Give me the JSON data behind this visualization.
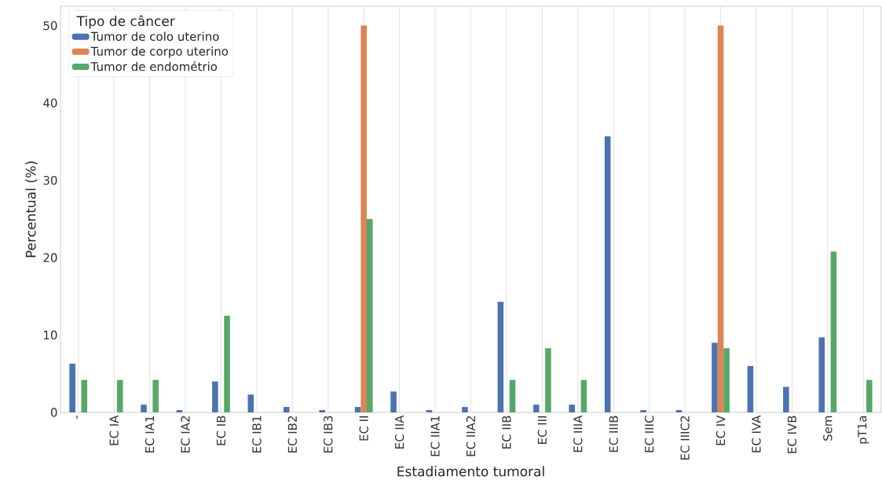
{
  "chart_data": {
    "type": "bar",
    "xlabel": "Estadiamento tumoral",
    "ylabel": "Percentual (%)",
    "legend_title": "Tipo de câncer",
    "categories": [
      "-",
      "EC IA",
      "EC IA1",
      "EC IA2",
      "EC IB",
      "EC IB1",
      "EC IB2",
      "EC IB3",
      "EC II",
      "EC IIA",
      "EC IIA1",
      "EC IIA2",
      "EC IIB",
      "EC III",
      "EC IIIA",
      "EC IIIB",
      "EC IIIC",
      "EC IIIC2",
      "EC IV",
      "EC IVA",
      "EC IVB",
      "Sem",
      "pT1a"
    ],
    "series": [
      {
        "name": "Tumor de colo uterino",
        "color": "#4c72b0",
        "values": [
          6.3,
          0,
          1.0,
          0.3,
          4.0,
          2.3,
          0.7,
          0.3,
          0.7,
          2.7,
          0.3,
          0.7,
          14.3,
          1.0,
          1.0,
          35.7,
          0.3,
          0.3,
          9.0,
          6.0,
          3.3,
          9.7,
          0
        ]
      },
      {
        "name": "Tumor de corpo uterino",
        "color": "#dd8452",
        "values": [
          0,
          0,
          0,
          0,
          0,
          0,
          0,
          0,
          50,
          0,
          0,
          0,
          0,
          0,
          0,
          0,
          0,
          0,
          50,
          0,
          0,
          0,
          0
        ]
      },
      {
        "name": "Tumor de endométrio",
        "color": "#55a868",
        "values": [
          4.2,
          4.2,
          4.2,
          0,
          12.5,
          0,
          0,
          0,
          25,
          0,
          0,
          0,
          4.2,
          8.3,
          4.2,
          0,
          0,
          0,
          8.3,
          0,
          0,
          20.8,
          4.2
        ]
      }
    ],
    "ylim": [
      0,
      52.5
    ],
    "yticks": [
      0,
      10,
      20,
      30,
      40,
      50
    ],
    "grid": "x",
    "legend": "top left"
  }
}
